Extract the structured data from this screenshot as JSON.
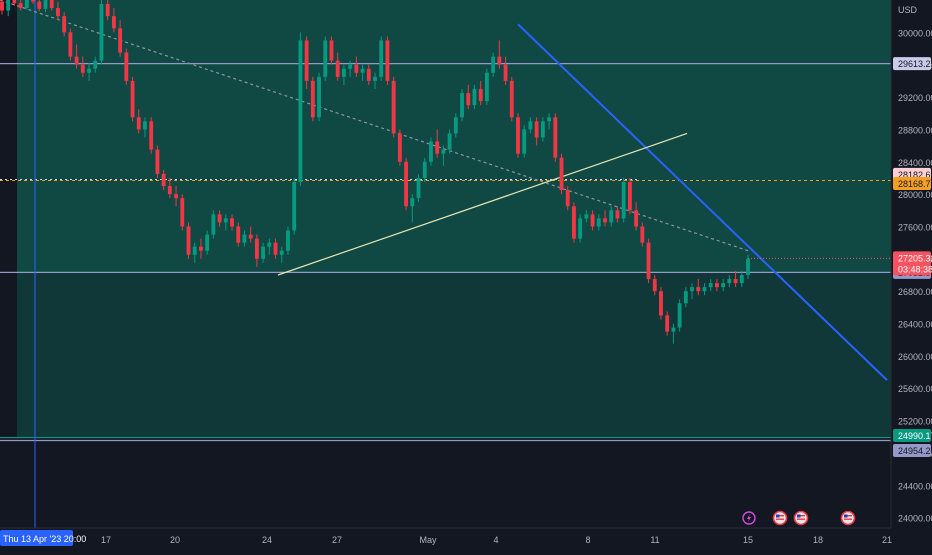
{
  "chart_data": {
    "type": "candlestick",
    "currency": "USD",
    "price_axis": {
      "min": 23600,
      "max": 30400,
      "ticks": [
        24000,
        24400,
        24800,
        25200,
        25600,
        26000,
        26400,
        26800,
        27200,
        27600,
        28000,
        28400,
        28800,
        29200,
        29600,
        30000
      ],
      "tick_labels": [
        "24000.00",
        "24400.00",
        "24800.00",
        "25200.00",
        "25600.00",
        "26000.00",
        "26400.00",
        "26800.00",
        "27200.00",
        "27600.00",
        "28000.00",
        "28400.00",
        "28800.00",
        "29200.00",
        "29600.00",
        "30000.00"
      ]
    },
    "time_axis": {
      "labels": [
        "17",
        "20",
        "24",
        "27",
        "May",
        "4",
        "8",
        "11",
        "15",
        "18",
        "21"
      ],
      "crosshair_label": "Thu 13 Apr '23   20:00"
    },
    "shaded_zone": {
      "from": 24990,
      "to": 30400
    },
    "horizontal_lines": [
      {
        "label": "29613.25",
        "price": 29613.25,
        "color": "#9598c8",
        "style": "solid"
      },
      {
        "label": "28182.66",
        "price": 28182.66,
        "color": "#f7525f",
        "style": "price"
      },
      {
        "label": "28168.79",
        "price": 28168.79,
        "color": "#f59f22",
        "style": "dashed"
      },
      {
        "label": "27032.56",
        "price": 27032.56,
        "color": "#9598c8",
        "style": "solid"
      },
      {
        "label": "24990.17",
        "price": 24990.17,
        "color": "#089981",
        "style": "solid"
      },
      {
        "label": "24954.28",
        "price": 24954.28,
        "color": "#9598c8",
        "style": "solid"
      }
    ],
    "last_price": {
      "value": "27205.32",
      "countdown": "03:48:38",
      "price": 27205.32,
      "color": "#f7525f"
    },
    "trendlines": [
      {
        "name": "descending-resistance",
        "color": "#2962ff",
        "from": {
          "x": "May 3 12:00",
          "price": 30100
        },
        "to": {
          "x": "May 21",
          "price": 25700
        }
      },
      {
        "name": "ascending-support",
        "color": "#e8e6b0",
        "from": {
          "x": "Apr 24 12:00",
          "price": 27000
        },
        "to": {
          "x": "May 12",
          "price": 28750
        }
      },
      {
        "name": "dotted-guide",
        "color": "#8e94a3",
        "from": {
          "x": "Apr 12",
          "price": 30400
        },
        "to": {
          "x": "May 15",
          "price": 27300
        }
      }
    ],
    "event_icons": [
      "lightning-icon",
      "us-flag-icon",
      "us-flag-icon",
      "us-flag-icon"
    ],
    "series": [
      {
        "name": "candles",
        "values": [
          [
            30380,
            30420,
            30220,
            30270
          ],
          [
            30270,
            30420,
            30200,
            30400
          ],
          [
            30400,
            30430,
            30330,
            30360
          ],
          [
            30360,
            30420,
            30270,
            30300
          ],
          [
            30300,
            30430,
            30280,
            30420
          ],
          [
            30420,
            30440,
            30350,
            30380
          ],
          [
            30380,
            30430,
            30260,
            30290
          ],
          [
            30290,
            30420,
            30250,
            30400
          ],
          [
            30400,
            30440,
            30270,
            30300
          ],
          [
            30300,
            30380,
            30150,
            30200
          ],
          [
            30200,
            30250,
            29950,
            30000
          ],
          [
            30000,
            30050,
            29650,
            29700
          ],
          [
            29700,
            29850,
            29550,
            29600
          ],
          [
            29600,
            29700,
            29450,
            29500
          ],
          [
            29500,
            29620,
            29400,
            29550
          ],
          [
            29550,
            29700,
            29500,
            29650
          ],
          [
            29650,
            30400,
            29600,
            30350
          ],
          [
            30350,
            30420,
            30150,
            30200
          ],
          [
            30200,
            30300,
            30000,
            30050
          ],
          [
            30050,
            30150,
            29700,
            29750
          ],
          [
            29750,
            29800,
            29350,
            29400
          ],
          [
            29400,
            29450,
            28900,
            28950
          ],
          [
            28950,
            29050,
            28750,
            28800
          ],
          [
            28800,
            28950,
            28700,
            28900
          ],
          [
            28900,
            28950,
            28500,
            28550
          ],
          [
            28550,
            28600,
            28200,
            28250
          ],
          [
            28250,
            28300,
            28050,
            28100
          ],
          [
            28100,
            28200,
            27950,
            28000
          ],
          [
            28000,
            28100,
            27850,
            27950
          ],
          [
            27950,
            28000,
            27550,
            27600
          ],
          [
            27600,
            27650,
            27200,
            27250
          ],
          [
            27250,
            27400,
            27150,
            27350
          ],
          [
            27350,
            27450,
            27200,
            27300
          ],
          [
            27300,
            27550,
            27250,
            27500
          ],
          [
            27500,
            27800,
            27450,
            27750
          ],
          [
            27750,
            27800,
            27600,
            27650
          ],
          [
            27650,
            27750,
            27550,
            27700
          ],
          [
            27700,
            27750,
            27550,
            27600
          ],
          [
            27600,
            27650,
            27350,
            27400
          ],
          [
            27400,
            27550,
            27350,
            27500
          ],
          [
            27500,
            27600,
            27400,
            27450
          ],
          [
            27450,
            27500,
            27100,
            27200
          ],
          [
            27200,
            27400,
            27150,
            27350
          ],
          [
            27350,
            27450,
            27250,
            27400
          ],
          [
            27400,
            27450,
            27200,
            27250
          ],
          [
            27250,
            27350,
            27150,
            27300
          ],
          [
            27300,
            27600,
            27250,
            27550
          ],
          [
            27550,
            28200,
            27500,
            28150
          ],
          [
            28150,
            30000,
            28100,
            29900
          ],
          [
            29900,
            29950,
            29300,
            29400
          ],
          [
            29400,
            29450,
            28900,
            28950
          ],
          [
            28950,
            29500,
            28900,
            29450
          ],
          [
            29450,
            29950,
            29400,
            29900
          ],
          [
            29900,
            29950,
            29600,
            29650
          ],
          [
            29650,
            29750,
            29400,
            29450
          ],
          [
            29450,
            29600,
            29350,
            29550
          ],
          [
            29550,
            29650,
            29450,
            29600
          ],
          [
            29600,
            29700,
            29450,
            29500
          ],
          [
            29500,
            29600,
            29400,
            29550
          ],
          [
            29550,
            29600,
            29350,
            29400
          ],
          [
            29400,
            29500,
            29300,
            29450
          ],
          [
            29450,
            29950,
            29400,
            29900
          ],
          [
            29900,
            29950,
            29350,
            29400
          ],
          [
            29400,
            29450,
            28700,
            28750
          ],
          [
            28750,
            28800,
            28350,
            28400
          ],
          [
            28400,
            28450,
            27800,
            27850
          ],
          [
            27850,
            28000,
            27650,
            27950
          ],
          [
            27950,
            28250,
            27900,
            28200
          ],
          [
            28200,
            28450,
            28150,
            28400
          ],
          [
            28400,
            28700,
            28350,
            28650
          ],
          [
            28650,
            28800,
            28450,
            28500
          ],
          [
            28500,
            28600,
            28350,
            28550
          ],
          [
            28550,
            28800,
            28500,
            28750
          ],
          [
            28750,
            29000,
            28700,
            28950
          ],
          [
            28950,
            29300,
            28900,
            29250
          ],
          [
            29250,
            29350,
            29050,
            29100
          ],
          [
            29100,
            29350,
            29050,
            29300
          ],
          [
            29300,
            29400,
            29100,
            29150
          ],
          [
            29150,
            29550,
            29100,
            29500
          ],
          [
            29500,
            29750,
            29450,
            29700
          ],
          [
            29700,
            29900,
            29550,
            29600
          ],
          [
            29600,
            29700,
            29350,
            29400
          ],
          [
            29400,
            29450,
            28900,
            28950
          ],
          [
            28950,
            29000,
            28450,
            28500
          ],
          [
            28500,
            28850,
            28450,
            28800
          ],
          [
            28800,
            28950,
            28750,
            28900
          ],
          [
            28900,
            28950,
            28600,
            28700
          ],
          [
            28700,
            28950,
            28650,
            28900
          ],
          [
            28900,
            29000,
            28800,
            28950
          ],
          [
            28950,
            29000,
            28400,
            28450
          ],
          [
            28450,
            28500,
            28000,
            28050
          ],
          [
            28050,
            28100,
            27800,
            27850
          ],
          [
            27850,
            27900,
            27400,
            27450
          ],
          [
            27450,
            27750,
            27400,
            27700
          ],
          [
            27700,
            27800,
            27650,
            27750
          ],
          [
            27750,
            27800,
            27550,
            27600
          ],
          [
            27600,
            27750,
            27550,
            27700
          ],
          [
            27700,
            27800,
            27600,
            27650
          ],
          [
            27650,
            27850,
            27600,
            27800
          ],
          [
            27800,
            27850,
            27650,
            27700
          ],
          [
            27700,
            28200,
            27650,
            28150
          ],
          [
            28150,
            28200,
            27750,
            27800
          ],
          [
            27800,
            27900,
            27550,
            27600
          ],
          [
            27600,
            27650,
            27350,
            27400
          ],
          [
            27400,
            27450,
            26900,
            26950
          ],
          [
            26950,
            27000,
            26750,
            26800
          ],
          [
            26800,
            26850,
            26450,
            26500
          ],
          [
            26500,
            26550,
            26250,
            26300
          ],
          [
            26300,
            26400,
            26150,
            26350
          ],
          [
            26350,
            26700,
            26300,
            26650
          ],
          [
            26650,
            26850,
            26600,
            26800
          ],
          [
            26800,
            26900,
            26700,
            26850
          ],
          [
            26850,
            26950,
            26750,
            26800
          ],
          [
            26800,
            26900,
            26750,
            26850
          ],
          [
            26850,
            26950,
            26800,
            26900
          ],
          [
            26900,
            26950,
            26800,
            26850
          ],
          [
            26850,
            26950,
            26800,
            26900
          ],
          [
            26900,
            27000,
            26850,
            26950
          ],
          [
            26950,
            27050,
            26850,
            26900
          ],
          [
            26900,
            27050,
            26850,
            27000
          ],
          [
            27000,
            27250,
            26950,
            27200
          ]
        ]
      }
    ]
  }
}
